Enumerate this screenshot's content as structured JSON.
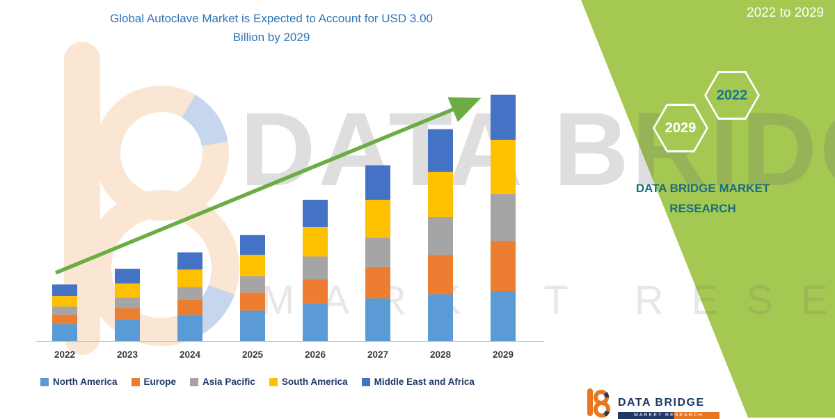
{
  "header": {
    "title_line1": "Global Autoclave Market is Expected to Account for USD 3.00",
    "title_line2": "Billion by 2029"
  },
  "side_panel": {
    "period": "2022 to 2029",
    "hex_back_label": "2022",
    "hex_front_label": "2029",
    "brand_line1": "DATA BRIDGE MARKET",
    "brand_line2": "RESEARCH"
  },
  "watermark": {
    "big_text": "DATA BRIDGE",
    "sub_text": "MARKET RESEARCH"
  },
  "footer_logo": {
    "brand": "DATA BRIDGE",
    "sub_brand": "MARKET RESEARCH"
  },
  "colors": {
    "panel_green": "#A5C853",
    "title_blue": "#2E75B6",
    "legend_text_navy": "#1F3864",
    "brand_teal": "#1A6F7E",
    "arrow_green": "#6CAC44"
  },
  "chart_data": {
    "type": "bar",
    "stacked": true,
    "title": "Global Autoclave Market is Expected to Account for USD 3.00 Billion by 2029",
    "unit": "USD Billion",
    "categories": [
      "2022",
      "2023",
      "2024",
      "2025",
      "2026",
      "2027",
      "2028",
      "2029"
    ],
    "series": [
      {
        "name": "North America",
        "color": "#5B9BD5",
        "values": [
          0.21,
          0.26,
          0.32,
          0.37,
          0.45,
          0.52,
          0.57,
          0.61
        ]
      },
      {
        "name": "Europe",
        "color": "#ED7D31",
        "values": [
          0.11,
          0.14,
          0.18,
          0.22,
          0.3,
          0.38,
          0.48,
          0.61
        ]
      },
      {
        "name": "Asia Pacific",
        "color": "#A5A5A5",
        "values": [
          0.1,
          0.13,
          0.16,
          0.2,
          0.28,
          0.36,
          0.46,
          0.57
        ]
      },
      {
        "name": "South America",
        "color": "#FFC000",
        "values": [
          0.13,
          0.17,
          0.21,
          0.26,
          0.36,
          0.46,
          0.55,
          0.66
        ]
      },
      {
        "name": "Middle East and Africa",
        "color": "#4472C4",
        "values": [
          0.14,
          0.18,
          0.21,
          0.24,
          0.33,
          0.42,
          0.52,
          0.55
        ]
      }
    ],
    "totals": [
      0.69,
      0.88,
      1.08,
      1.29,
      1.72,
      2.14,
      2.58,
      3.0
    ],
    "ylim": [
      0,
      3.2
    ],
    "grid": false,
    "legend_position": "bottom",
    "axis_line_color": "#BFBFBF",
    "trend_arrow": {
      "show": true,
      "color": "#6CAC44"
    }
  }
}
